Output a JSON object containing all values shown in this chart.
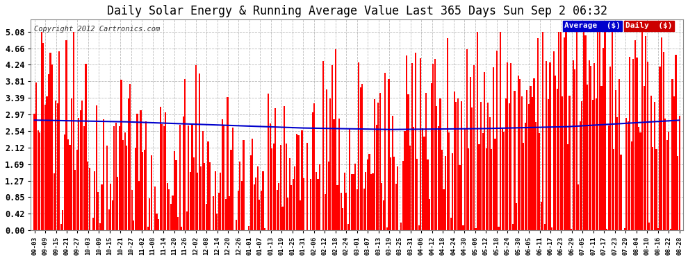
{
  "title": "Daily Solar Energy & Running Average Value Last 365 Days Sun Sep 2 06:32",
  "copyright": "Copyright 2012 Cartronics.com",
  "bar_color": "#ff0000",
  "avg_line_color": "#0000cc",
  "background_color": "#ffffff",
  "plot_bg_color": "#ffffff",
  "grid_color": "#aaaaaa",
  "text_color": "#000000",
  "yticks": [
    0.0,
    0.42,
    0.85,
    1.27,
    1.69,
    2.12,
    2.54,
    2.97,
    3.39,
    3.81,
    4.24,
    4.66,
    5.08
  ],
  "ylim": [
    0.0,
    5.4
  ],
  "n_bars": 365,
  "legend_avg_color": "#0000cc",
  "legend_daily_color": "#cc0000",
  "legend_text_color": "#ffffff",
  "title_color": "#000000",
  "title_fontsize": 12,
  "xtick_labels": [
    "09-03",
    "09-09",
    "09-15",
    "09-21",
    "09-27",
    "10-03",
    "10-09",
    "10-15",
    "10-21",
    "10-27",
    "11-02",
    "11-08",
    "11-14",
    "11-20",
    "11-26",
    "12-02",
    "12-08",
    "12-14",
    "12-20",
    "12-26",
    "01-01",
    "01-07",
    "01-13",
    "01-19",
    "01-25",
    "01-31",
    "02-06",
    "02-12",
    "02-18",
    "02-24",
    "03-01",
    "03-07",
    "03-13",
    "03-19",
    "03-25",
    "03-31",
    "04-06",
    "04-12",
    "04-18",
    "04-24",
    "04-30",
    "05-06",
    "05-12",
    "05-18",
    "05-24",
    "05-30",
    "06-05",
    "06-11",
    "06-17",
    "06-23",
    "06-29",
    "07-05",
    "07-11",
    "07-17",
    "07-23",
    "07-29",
    "08-04",
    "08-10",
    "08-16",
    "08-22",
    "08-28"
  ]
}
